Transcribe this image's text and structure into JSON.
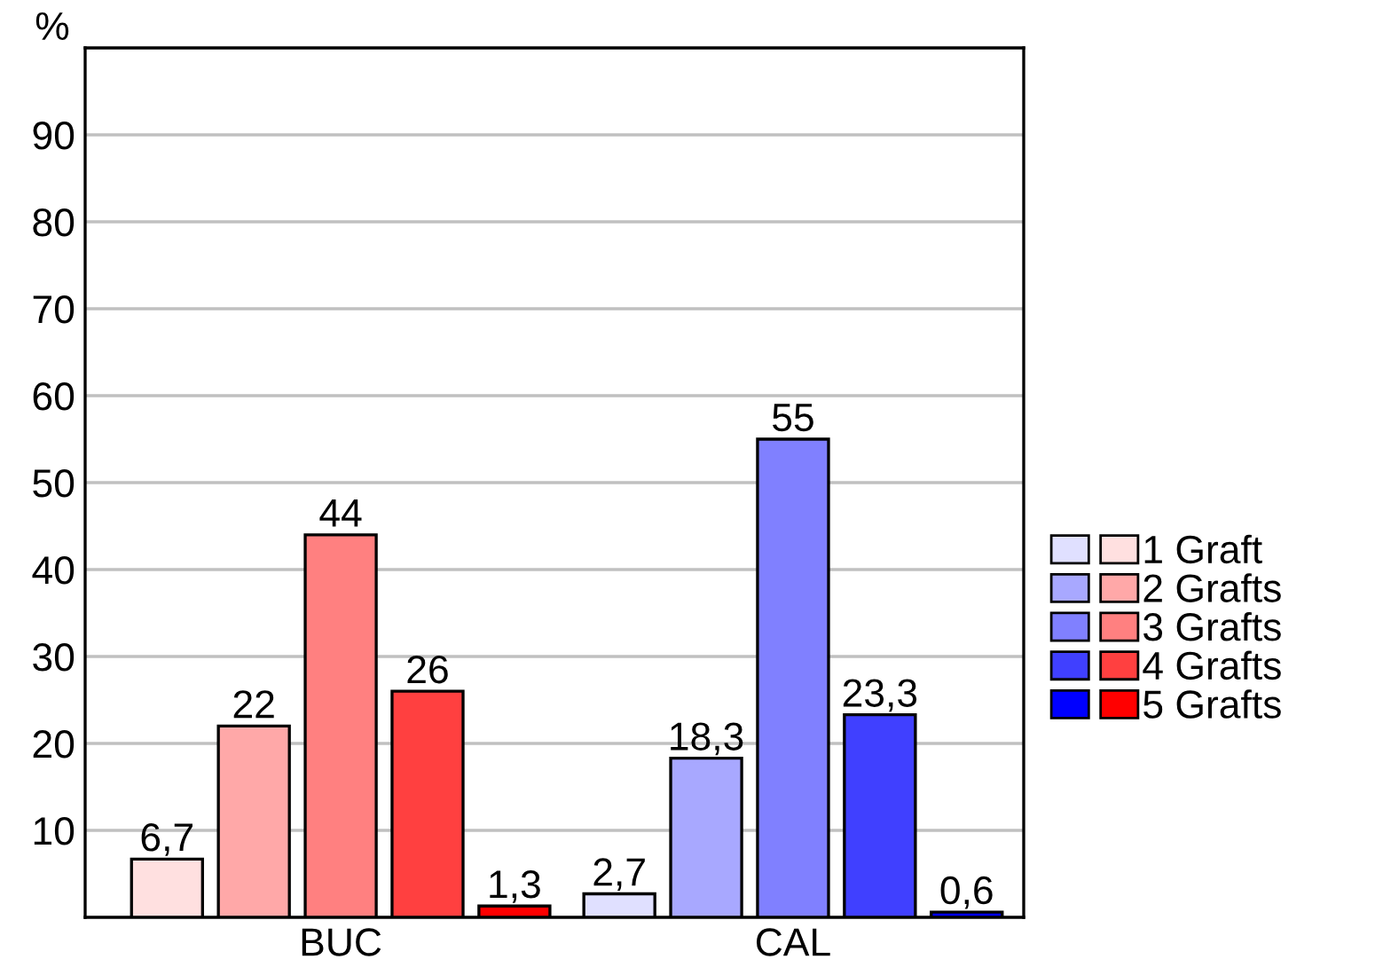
{
  "chart_data": {
    "type": "bar",
    "ylabel": "%",
    "categories": [
      "BUC",
      "CAL"
    ],
    "series": [
      {
        "name": "1 Graft",
        "colors": [
          "#ffe0e0",
          "#e0e0ff"
        ],
        "values": [
          6.7,
          2.7
        ],
        "value_labels": [
          "6,7",
          "2,7"
        ]
      },
      {
        "name": "2 Grafts",
        "colors": [
          "#ffa8a8",
          "#a8a8ff"
        ],
        "values": [
          22,
          18.3
        ],
        "value_labels": [
          "22",
          "18,3"
        ]
      },
      {
        "name": "3 Grafts",
        "colors": [
          "#ff8080",
          "#8080ff"
        ],
        "values": [
          44,
          55
        ],
        "value_labels": [
          "44",
          "55"
        ]
      },
      {
        "name": "4 Grafts",
        "colors": [
          "#ff4040",
          "#4040ff"
        ],
        "values": [
          26,
          23.3
        ],
        "value_labels": [
          "26",
          "23,3"
        ]
      },
      {
        "name": "5 Grafts",
        "colors": [
          "#ff0000",
          "#0000ff"
        ],
        "values": [
          1.3,
          0.6
        ],
        "value_labels": [
          "1,3",
          "0,6"
        ]
      }
    ],
    "ylim": [
      0,
      100
    ],
    "yticks": [
      10,
      20,
      30,
      40,
      50,
      60,
      70,
      80,
      90
    ],
    "grid": "y",
    "legend": "right"
  }
}
